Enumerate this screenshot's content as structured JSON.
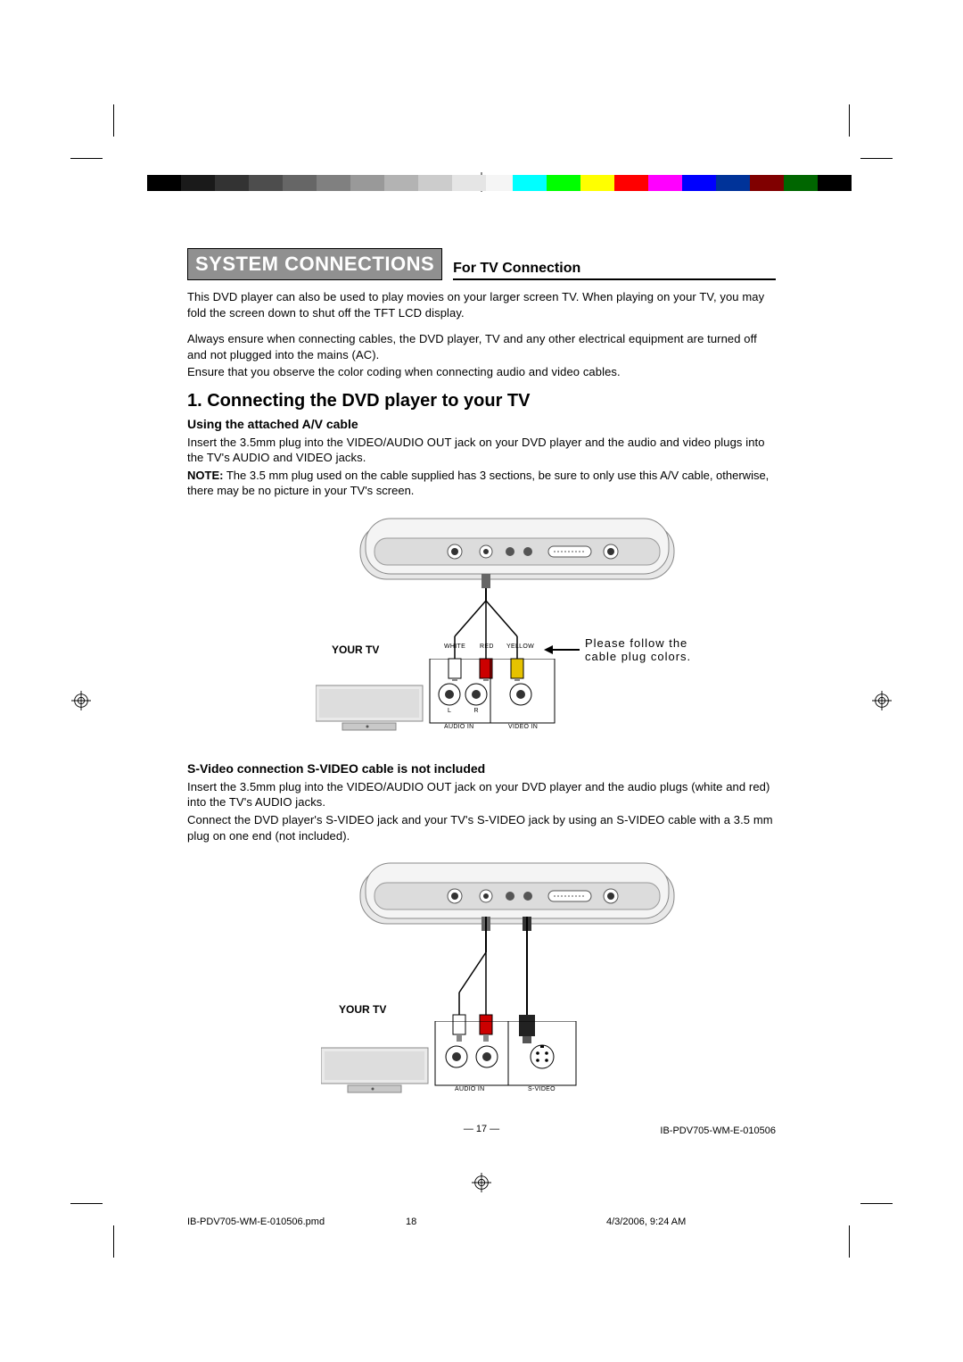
{
  "crop_color": "#000000",
  "gray_bar": [
    "#000000",
    "#1a1a1a",
    "#333333",
    "#4d4d4d",
    "#666666",
    "#808080",
    "#999999",
    "#b3b3b3",
    "#cccccc",
    "#e5e5e5",
    "#f5f5f5"
  ],
  "color_bar": [
    "#00ffff",
    "#00ff00",
    "#ffff00",
    "#ff0000",
    "#ff00ff",
    "#0000ff",
    "#003399",
    "#800000",
    "#006600",
    "#000000"
  ],
  "banner": {
    "title": "SYSTEM CONNECTIONS",
    "subtitle": "For TV Connection",
    "bg": "#909090",
    "fg": "#ffffff"
  },
  "intro": {
    "p1": "This DVD player can also be used to play movies on your larger screen TV. When playing on your TV, you may fold the screen down to shut off the TFT LCD display.",
    "p2": "Always ensure when connecting cables, the DVD player, TV and any other electrical equipment are turned off and not plugged into the mains (AC).",
    "p3": "Ensure that you observe the color coding when connecting audio and video cables."
  },
  "section1": {
    "heading": "1. Connecting the DVD player to your TV",
    "sub_a": "Using the attached A/V cable",
    "a_text": "Insert the 3.5mm plug into the VIDEO/AUDIO OUT jack on your DVD player and the audio and video plugs into the TV's AUDIO and VIDEO jacks.",
    "note_label": "NOTE:",
    "note_text": " The 3.5 mm plug used on the cable supplied has 3 sections, be sure to only use this A/V cable, otherwise, there may be no picture in your TV's screen.",
    "sub_b": "S-Video connection S-VIDEO cable is not included",
    "b_text1": "Insert the 3.5mm plug into the VIDEO/AUDIO OUT jack on your DVD player and the audio plugs (white and red) into the TV's AUDIO jacks.",
    "b_text2": "Connect the DVD player's S-VIDEO jack and your TV's S-VIDEO jack by using an S-VIDEO cable with a 3.5 mm plug on one end (not included)."
  },
  "diagram1": {
    "your_tv": "YOUR TV",
    "white": "WHITE",
    "red": "RED",
    "yellow": "YELLOW",
    "audio_in": "AUDIO IN",
    "video_in": "VIDEO IN",
    "l": "L",
    "r": "R",
    "caption": "Please follow the cable plug colors.",
    "plug_colors": {
      "white": "#ffffff",
      "red": "#cc0000",
      "yellow": "#e6c200"
    }
  },
  "diagram2": {
    "your_tv": "YOUR TV",
    "audio_in": "AUDIO IN",
    "s_video": "S-VIDEO"
  },
  "page_number": "17",
  "doc_code": "IB-PDV705-WM-E-010506",
  "print_footer": {
    "filename": "IB-PDV705-WM-E-010506.pmd",
    "page": "18",
    "timestamp": "4/3/2006, 9:24 AM"
  }
}
